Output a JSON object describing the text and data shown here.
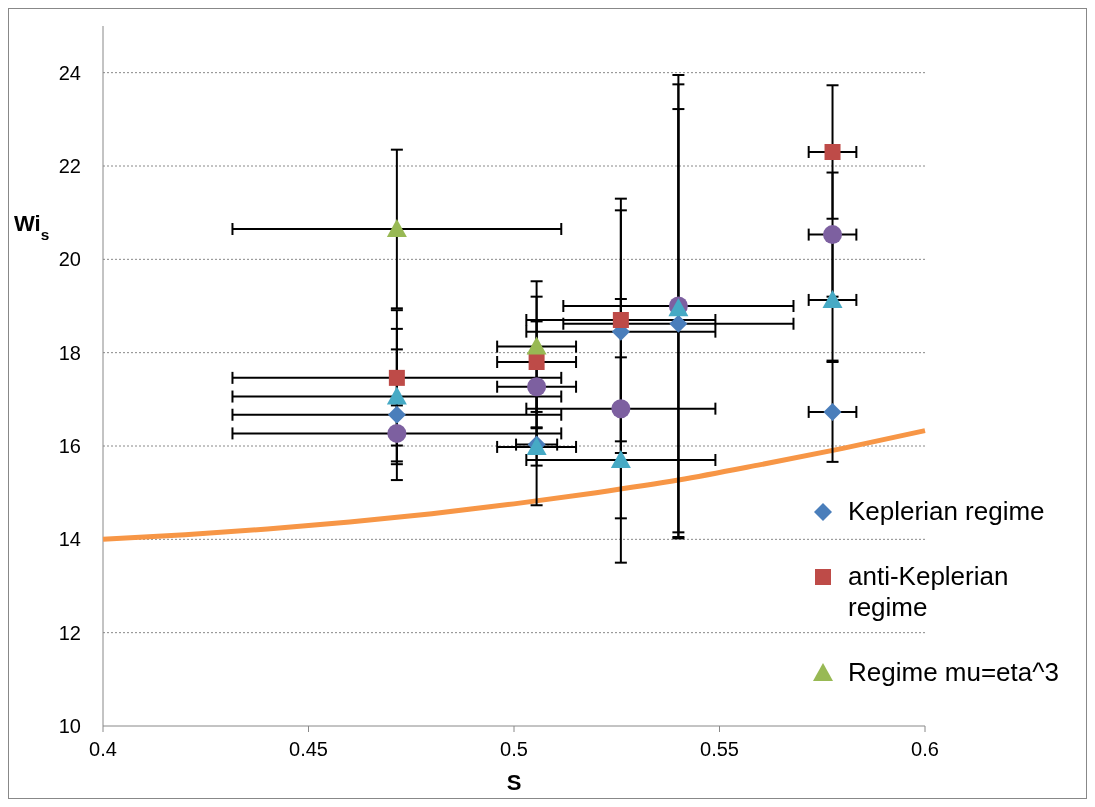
{
  "chart_data": {
    "type": "scatter",
    "xlabel": "S",
    "ylabel": "Wi$_{s}$",
    "xlim": [
      0.4,
      0.6
    ],
    "xticks": [
      0.4,
      0.45,
      0.5,
      0.55,
      0.6
    ],
    "ylim": [
      10,
      25
    ],
    "yticks": [
      10,
      12,
      14,
      16,
      18,
      20,
      22,
      24
    ],
    "grid": "y",
    "legend": "right",
    "series": [
      {
        "name": "Keplerian regime",
        "color": "#4a7ebb",
        "marker": "diamond",
        "x": [
          0.4715,
          0.5055,
          0.526,
          0.54,
          0.5775
        ],
        "values": [
          16.67,
          16.03,
          18.45,
          18.62,
          16.73
        ],
        "errors": [
          1.4,
          1.3,
          2.6,
          4.6,
          1.07
        ],
        "xerrors": [
          0.04,
          0.005,
          0.023,
          0.028,
          0.0058
        ]
      },
      {
        "name": "anti-Keplerian regime",
        "color": "#be4b48",
        "marker": "square",
        "x": [
          0.4715,
          0.5055,
          0.526,
          0.5775
        ],
        "values": [
          17.46,
          17.8,
          18.7,
          22.3
        ],
        "errors": [
          1.45,
          1.4,
          2.6,
          1.43
        ],
        "xerrors": [
          0.04,
          0.0096,
          0.023,
          0.0058
        ]
      },
      {
        "name": "Regime mu=eta^3",
        "color": "#98b954",
        "marker": "triangle",
        "x": [
          0.4715,
          0.5055
        ],
        "values": [
          20.65,
          18.13
        ],
        "errors": [
          1.7,
          1.4
        ],
        "xerrors": [
          0.04,
          0.0096
        ]
      },
      {
        "color": "#7d60a0",
        "marker": "circle",
        "x": [
          0.4715,
          0.5055,
          0.526,
          0.54,
          0.5775
        ],
        "values": [
          16.27,
          17.27,
          16.8,
          19.0,
          20.53
        ],
        "errors": [
          0.6,
          1.4,
          2.35,
          4.95,
          1.33
        ],
        "xerrors": [
          0.04,
          0.0096,
          0.023,
          0.028,
          0.0058
        ]
      },
      {
        "color": "#46aac5",
        "marker": "triangle",
        "x": [
          0.4715,
          0.5055,
          0.526,
          0.54,
          0.5775
        ],
        "values": [
          17.06,
          15.98,
          15.7,
          18.95,
          19.13
        ],
        "errors": [
          1.45,
          0.4,
          2.2,
          4.8,
          1.3
        ],
        "xerrors": [
          0.04,
          0.0096,
          0.023,
          null,
          0.0058
        ]
      },
      {
        "type": "line",
        "color": "#f79646",
        "marker": "none",
        "x": [
          0.4,
          0.42,
          0.44,
          0.46,
          0.48,
          0.5,
          0.52,
          0.54,
          0.56,
          0.58,
          0.6
        ],
        "values": [
          14.0,
          14.1,
          14.22,
          14.37,
          14.55,
          14.76,
          15.0,
          15.27,
          15.6,
          15.95,
          16.33
        ]
      }
    ]
  }
}
